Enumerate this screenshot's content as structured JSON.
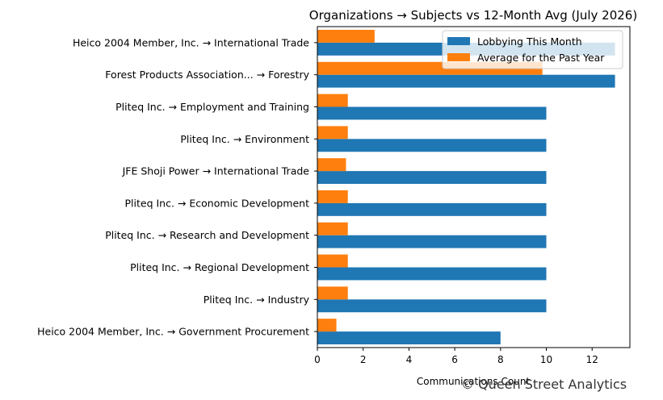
{
  "chart_data": {
    "type": "bar",
    "orientation": "horizontal",
    "title": "Organizations → Subjects vs 12-Month Avg (July 2026)",
    "xlabel": "Communications Count",
    "ylabel": "",
    "xlim": [
      0,
      13.65
    ],
    "xticks": [
      0,
      2,
      4,
      6,
      8,
      10,
      12
    ],
    "grid": false,
    "legend_position": "top-right",
    "categories": [
      "Heico 2004 Member, Inc. → International Trade",
      "Forest Products Association... → Forestry",
      "Pliteq Inc. → Employment and Training",
      "Pliteq Inc. → Environment",
      "JFE Shoji Power → International Trade",
      "Pliteq Inc. → Economic Development",
      "Pliteq Inc. → Research and Development",
      "Pliteq Inc. → Regional Development",
      "Pliteq Inc. → Industry",
      "Heico 2004 Member, Inc. → Government Procurement"
    ],
    "series": [
      {
        "name": "Lobbying This Month",
        "color": "#1f77b4",
        "values": [
          13,
          13,
          10,
          10,
          10,
          10,
          10,
          10,
          10,
          8
        ]
      },
      {
        "name": "Average for the Past Year",
        "color": "#ff7f0e",
        "values": [
          2.5,
          9.83,
          1.33,
          1.33,
          1.25,
          1.33,
          1.33,
          1.33,
          1.33,
          0.83
        ]
      }
    ]
  },
  "watermark": "© Queen Street Analytics"
}
